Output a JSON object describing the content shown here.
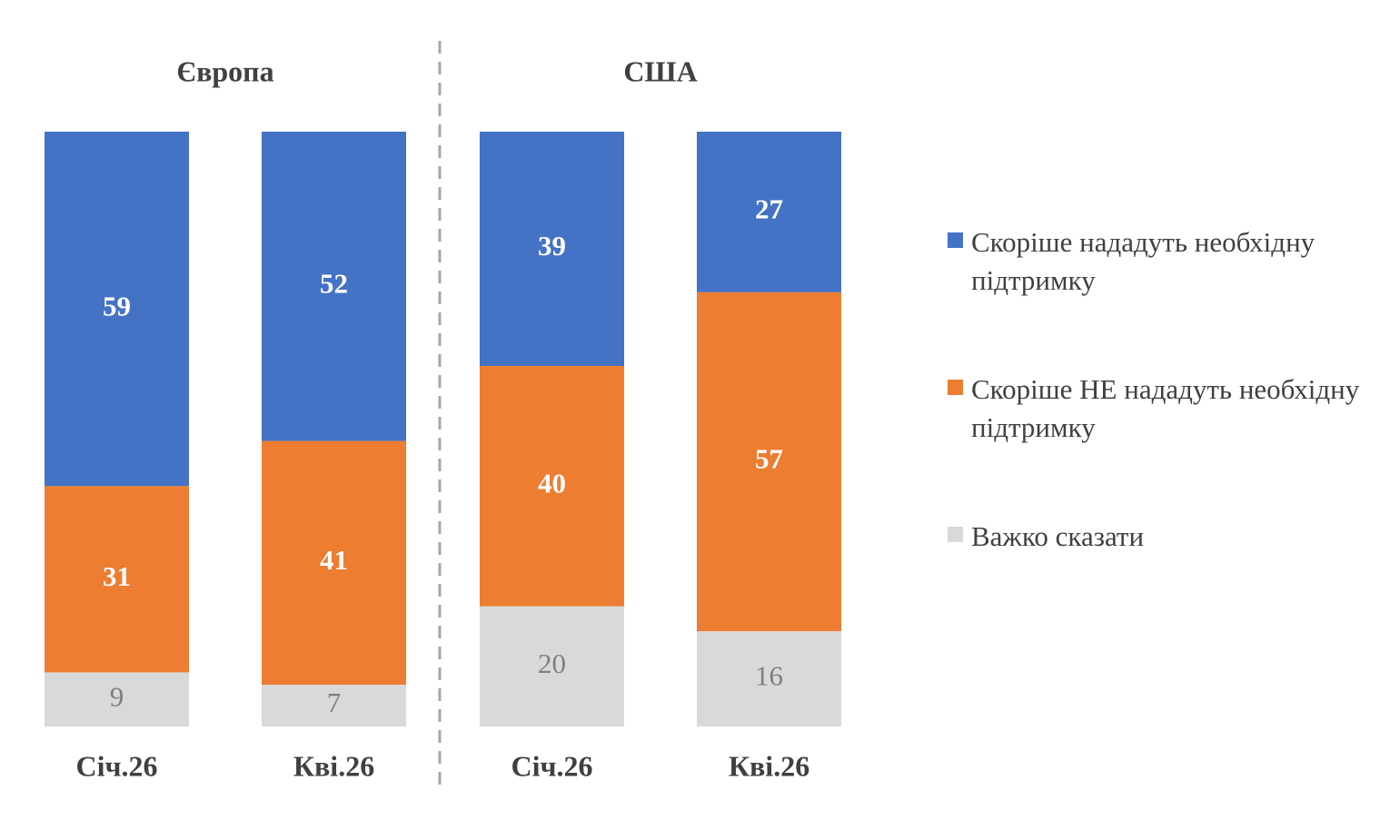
{
  "chart_data": {
    "type": "bar",
    "stacked": "percent",
    "legend": "right",
    "groups": [
      {
        "title": "Європа",
        "categories": [
          "Січ.26",
          "Кві.26"
        ]
      },
      {
        "title": "США",
        "categories": [
          "Січ.26",
          "Кві.26"
        ]
      }
    ],
    "series": [
      {
        "name": "Скоріше нададуть необхідну підтримку",
        "color": "#4472c4",
        "label_color": "#ffffff",
        "values": [
          59,
          52,
          39,
          27
        ]
      },
      {
        "name": "Скоріше НЕ нададуть необхідну підтримку",
        "color": "#ed7d31",
        "label_color": "#ffffff",
        "values": [
          31,
          41,
          40,
          57
        ]
      },
      {
        "name": "Важко сказати",
        "color": "#d9d9d9",
        "label_color": "#7f7f7f",
        "values": [
          9,
          7,
          20,
          16
        ]
      }
    ]
  }
}
